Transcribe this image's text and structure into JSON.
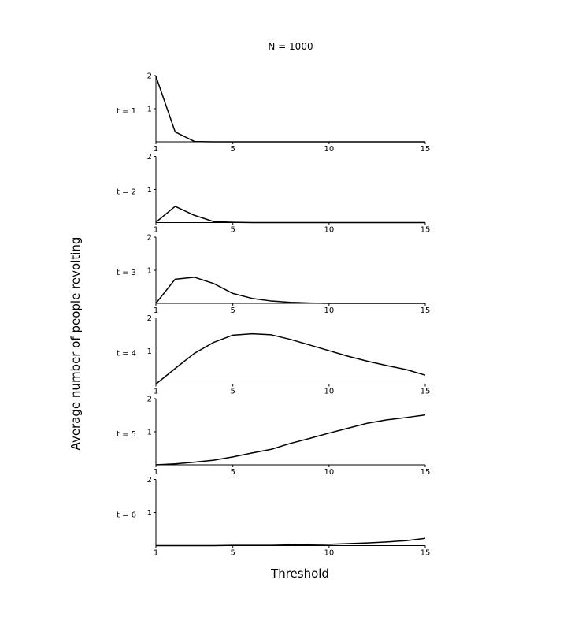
{
  "chart_data": {
    "type": "line",
    "title": "N = 1000",
    "xlabel": "Threshold",
    "ylabel": "Average number of people revolting",
    "xlim": [
      1,
      15
    ],
    "ylim": [
      0,
      2
    ],
    "xticks": [
      1,
      5,
      10,
      15
    ],
    "yticks": [
      1,
      2
    ],
    "grid": false,
    "x": [
      1,
      2,
      3,
      4,
      5,
      6,
      7,
      8,
      9,
      10,
      11,
      12,
      13,
      14,
      15
    ],
    "panels": [
      {
        "label": "t = 1",
        "values": [
          1.98,
          0.3,
          0.01,
          0.0,
          0.0,
          0.0,
          0.0,
          0.0,
          0.0,
          0.0,
          0.0,
          0.0,
          0.0,
          0.0,
          0.0
        ]
      },
      {
        "label": "t = 2",
        "values": [
          0.01,
          0.49,
          0.22,
          0.03,
          0.01,
          0.0,
          0.0,
          0.0,
          0.0,
          0.0,
          0.0,
          0.0,
          0.0,
          0.0,
          0.0
        ]
      },
      {
        "label": "t = 3",
        "values": [
          0.0,
          0.73,
          0.79,
          0.6,
          0.3,
          0.15,
          0.07,
          0.03,
          0.01,
          0.0,
          0.0,
          0.0,
          0.0,
          0.0,
          0.0
        ]
      },
      {
        "label": "t = 4",
        "values": [
          0.0,
          0.47,
          0.93,
          1.26,
          1.48,
          1.52,
          1.49,
          1.35,
          1.18,
          1.01,
          0.84,
          0.69,
          0.56,
          0.44,
          0.27
        ]
      },
      {
        "label": "t = 5",
        "values": [
          0.0,
          0.03,
          0.08,
          0.14,
          0.24,
          0.36,
          0.47,
          0.65,
          0.8,
          0.96,
          1.11,
          1.26,
          1.36,
          1.43,
          1.51
        ]
      },
      {
        "label": "t = 6",
        "values": [
          0.0,
          0.0,
          0.0,
          0.0,
          0.01,
          0.01,
          0.01,
          0.02,
          0.03,
          0.04,
          0.06,
          0.08,
          0.11,
          0.15,
          0.22
        ]
      }
    ]
  }
}
